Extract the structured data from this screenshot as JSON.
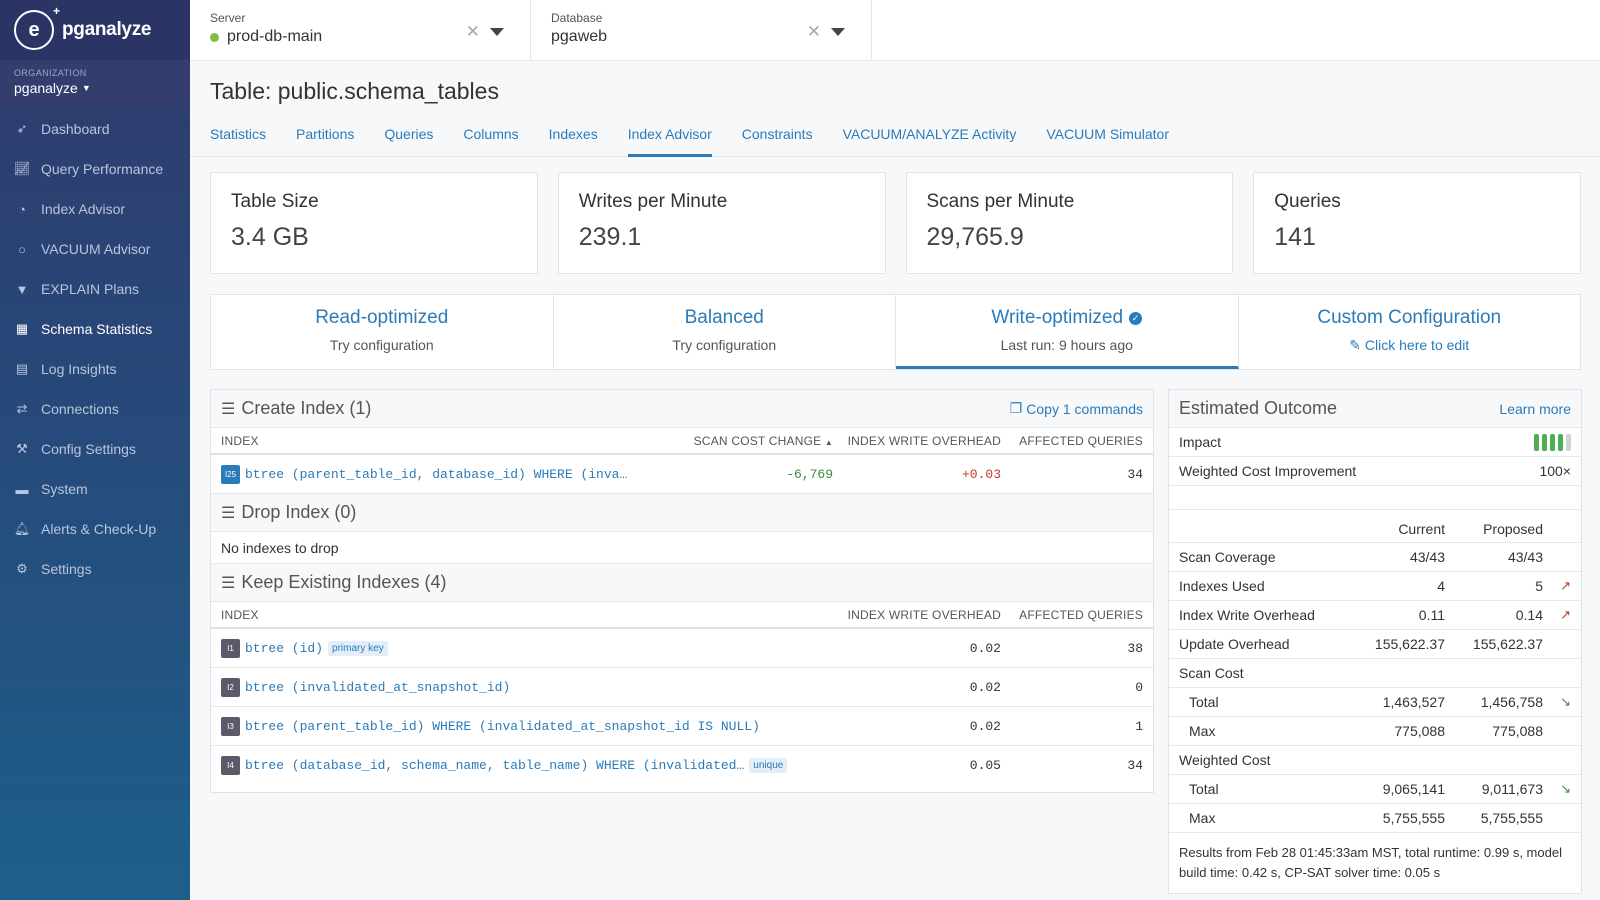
{
  "brand": {
    "name": "pganalyze"
  },
  "org": {
    "label": "ORGANIZATION",
    "name": "pganalyze"
  },
  "nav": [
    {
      "label": "Dashboard",
      "icon": "rocket-icon"
    },
    {
      "label": "Query Performance",
      "icon": "chart-icon"
    },
    {
      "label": "Index Advisor",
      "icon": "advisor-icon"
    },
    {
      "label": "VACUUM Advisor",
      "icon": "circle-icon"
    },
    {
      "label": "EXPLAIN Plans",
      "icon": "filter-icon"
    },
    {
      "label": "Schema Statistics",
      "icon": "table-icon"
    },
    {
      "label": "Log Insights",
      "icon": "log-icon"
    },
    {
      "label": "Connections",
      "icon": "exchange-icon"
    },
    {
      "label": "Config Settings",
      "icon": "wrench-icon"
    },
    {
      "label": "System",
      "icon": "server-icon"
    },
    {
      "label": "Alerts & Check-Up",
      "icon": "bell-icon"
    },
    {
      "label": "Settings",
      "icon": "gear-icon"
    }
  ],
  "topbar": {
    "server": {
      "label": "Server",
      "value": "prod-db-main"
    },
    "database": {
      "label": "Database",
      "value": "pgaweb"
    }
  },
  "page": {
    "title": "Table: public.schema_tables"
  },
  "tabs": [
    "Statistics",
    "Partitions",
    "Queries",
    "Columns",
    "Indexes",
    "Index Advisor",
    "Constraints",
    "VACUUM/ANALYZE Activity",
    "VACUUM Simulator"
  ],
  "stats": [
    {
      "label": "Table Size",
      "value": "3.4 GB"
    },
    {
      "label": "Writes per Minute",
      "value": "239.1"
    },
    {
      "label": "Scans per Minute",
      "value": "29,765.9"
    },
    {
      "label": "Queries",
      "value": "141"
    }
  ],
  "configs": [
    {
      "title": "Read-optimized",
      "sub": "Try configuration"
    },
    {
      "title": "Balanced",
      "sub": "Try configuration"
    },
    {
      "title": "Write-optimized",
      "sub": "Last run: 9 hours ago"
    },
    {
      "title": "Custom Configuration",
      "sub": "Click here to edit"
    }
  ],
  "create": {
    "title": "Create Index (1)",
    "copy": "Copy 1 commands",
    "cols": {
      "index": "INDEX",
      "scan": "SCAN COST CHANGE",
      "wo": "INDEX WRITE OVERHEAD",
      "aq": "AFFECTED QUERIES"
    },
    "rows": [
      {
        "badge": "I25",
        "def": "btree (parent_table_id, database_id) WHERE (inva…",
        "scan": "-6,769",
        "wo": "+0.03",
        "aq": "34"
      }
    ]
  },
  "drop": {
    "title": "Drop Index (0)",
    "empty": "No indexes to drop"
  },
  "keep": {
    "title": "Keep Existing Indexes (4)",
    "cols": {
      "index": "INDEX",
      "wo": "INDEX WRITE OVERHEAD",
      "aq": "AFFECTED QUERIES"
    },
    "rows": [
      {
        "badge": "I1",
        "def": "btree (id)",
        "tag": "primary key",
        "wo": "0.02",
        "aq": "38"
      },
      {
        "badge": "I2",
        "def": "btree (invalidated_at_snapshot_id)",
        "tag": "",
        "wo": "0.02",
        "aq": "0"
      },
      {
        "badge": "I3",
        "def": "btree (parent_table_id) WHERE (invalidated_at_snapshot_id IS NULL)",
        "tag": "",
        "wo": "0.02",
        "aq": "1"
      },
      {
        "badge": "I4",
        "def": "btree (database_id, schema_name, table_name) WHERE (invalidated…",
        "tag": "unique",
        "wo": "0.05",
        "aq": "34"
      }
    ]
  },
  "outcome": {
    "title": "Estimated Outcome",
    "learn": "Learn more",
    "impact_label": "Impact",
    "impact_level": 4,
    "impact_max": 5,
    "colors": {
      "impact_on": "#4caf50",
      "impact_off": "#cfd3d8",
      "trend_up": "#c0392b",
      "trend_down": "#3d8b3d"
    },
    "wci_label": "Weighted Cost Improvement",
    "wci_value": "100×",
    "head": {
      "current": "Current",
      "proposed": "Proposed"
    },
    "rows": [
      {
        "label": "Scan Coverage",
        "current": "43/43",
        "proposed": "43/43",
        "trend": ""
      },
      {
        "label": "Indexes Used",
        "current": "4",
        "proposed": "5",
        "trend": "↗"
      },
      {
        "label": "Index Write Overhead",
        "current": "0.11",
        "proposed": "0.14",
        "trend": "↗"
      },
      {
        "label": "Update Overhead",
        "current": "155,622.37",
        "proposed": "155,622.37",
        "trend": ""
      }
    ],
    "scan_cost": {
      "label": "Scan Cost",
      "total": {
        "label": "Total",
        "current": "1,463,527",
        "proposed": "1,456,758",
        "trend": "↘"
      },
      "max": {
        "label": "Max",
        "current": "775,088",
        "proposed": "775,088",
        "trend": ""
      }
    },
    "weighted_cost": {
      "label": "Weighted Cost",
      "total": {
        "label": "Total",
        "current": "9,065,141",
        "proposed": "9,011,673",
        "trend": "↘"
      },
      "max": {
        "label": "Max",
        "current": "5,755,555",
        "proposed": "5,755,555",
        "trend": ""
      }
    },
    "footnote": "Results from Feb 28 01:45:33am MST, total runtime: 0.99 s, model build time: 0.42 s, CP-SAT solver time: 0.05 s"
  }
}
